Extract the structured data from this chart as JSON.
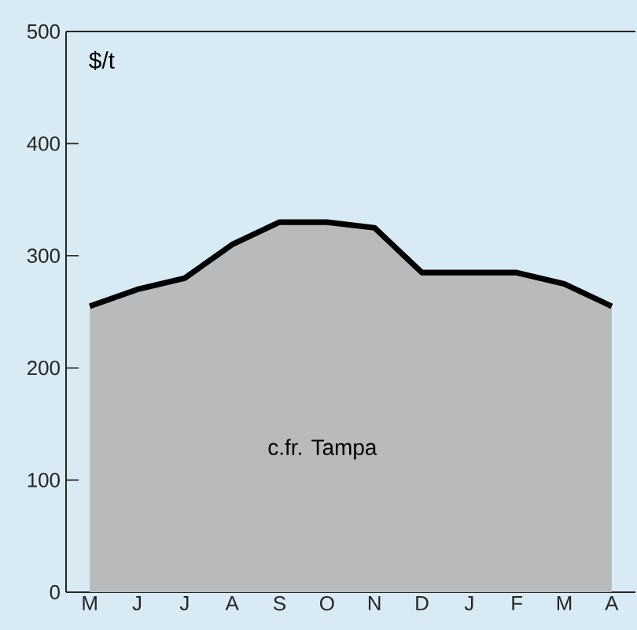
{
  "chart_data": {
    "type": "area",
    "ylabel": "$/t",
    "categories": [
      "M",
      "J",
      "J",
      "A",
      "S",
      "O",
      "N",
      "D",
      "J",
      "F",
      "M",
      "A"
    ],
    "series": [
      {
        "color": "#b8babb",
        "values": [
          255,
          270,
          280,
          310,
          330,
          330,
          325,
          285,
          285,
          285,
          275,
          255
        ]
      }
    ],
    "ylim": [
      0,
      500
    ],
    "yticks": [
      0,
      100,
      200,
      300,
      400,
      500
    ],
    "annotations": [
      "c.fr. Tampa"
    ]
  }
}
